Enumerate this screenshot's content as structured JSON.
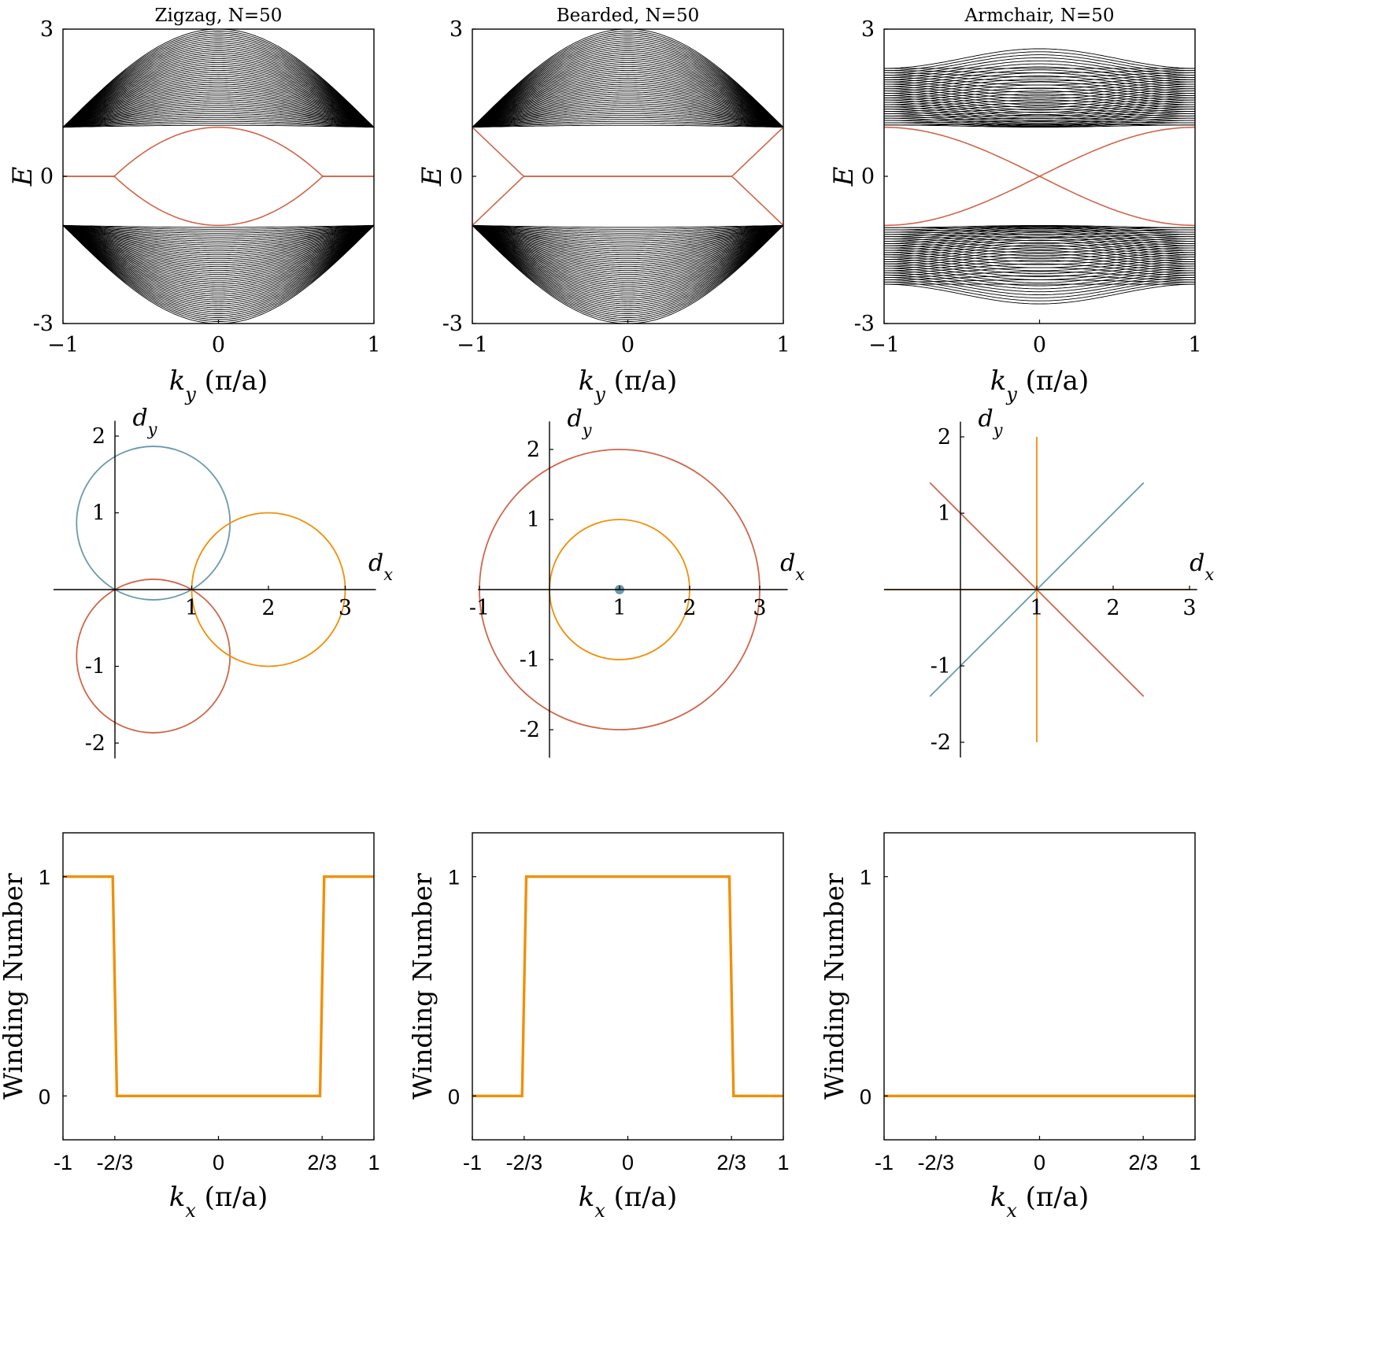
{
  "colors": {
    "black": "#000000",
    "edge_state": "#d0654a",
    "orange": "#f0900a",
    "blue": "#6a9aab"
  },
  "band_panels": [
    {
      "title": "Zigzag, N=50",
      "type": "zigzag",
      "ylabel": "E",
      "xlabel": "k_y (π/a)",
      "xlim": [
        -1,
        1
      ],
      "ylim": [
        -3,
        3
      ],
      "xticks": [
        "−1",
        "0",
        "1"
      ],
      "yticks": [
        "3",
        "0",
        "-3"
      ]
    },
    {
      "title": "Bearded, N=50",
      "type": "bearded",
      "ylabel": "E",
      "xlabel": "k_y (π/a)",
      "xlim": [
        -1,
        1
      ],
      "ylim": [
        -3,
        3
      ],
      "xticks": [
        "−1",
        "0",
        "1"
      ],
      "yticks": [
        "3",
        "0",
        "-3"
      ]
    },
    {
      "title": "Armchair, N=50",
      "type": "armchair",
      "ylabel": "E",
      "xlabel": "k_y (π/a)",
      "xlim": [
        -1,
        1
      ],
      "ylim": [
        -3,
        3
      ],
      "xticks": [
        "−1",
        "0",
        "1"
      ],
      "yticks": [
        "3",
        "0",
        "-3"
      ]
    }
  ],
  "d_panels": [
    {
      "xaxis_label": "d_x",
      "yaxis_label": "d_y",
      "xticks": [
        "1",
        "2",
        "3"
      ],
      "yticks": [
        "2",
        "1",
        "-1",
        "-2"
      ]
    },
    {
      "xaxis_label": "d_x",
      "yaxis_label": "d_y",
      "xticks": [
        "-1",
        "1",
        "2",
        "3"
      ],
      "yticks": [
        "2",
        "1",
        "-1",
        "-2"
      ]
    },
    {
      "xaxis_label": "d_x",
      "yaxis_label": "d_y",
      "xticks": [
        "1",
        "2",
        "3"
      ],
      "yticks": [
        "2",
        "1",
        "-1",
        "-2"
      ]
    }
  ],
  "winding_panels": [
    {
      "ylabel": "Winding Number",
      "xlabel": "k_x (π/a)",
      "xticks": [
        "-1",
        "-2/3",
        "0",
        "2/3",
        "1"
      ],
      "yticks": [
        "1",
        "0"
      ]
    },
    {
      "ylabel": "Winding Number",
      "xlabel": "k_x (π/a)",
      "xticks": [
        "-1",
        "-2/3",
        "0",
        "2/3",
        "1"
      ],
      "yticks": [
        "1",
        "0"
      ]
    },
    {
      "ylabel": "Winding Number",
      "xlabel": "k_x (π/a)",
      "xticks": [
        "-1",
        "-2/3",
        "0",
        "2/3",
        "1"
      ],
      "yticks": [
        "1",
        "0"
      ]
    }
  ],
  "chart_data": [
    {
      "type": "line",
      "title": "Zigzag, N=50",
      "xlabel": "k_y (π/a)",
      "ylabel": "E",
      "xlim": [
        -1,
        1
      ],
      "ylim": [
        -3,
        3
      ],
      "series": [
        {
          "values": "50 bulk bands with E(0) from ±1 to ±3, converging to ±1 at k_y = ±1"
        },
        {
          "values": "flat edge state E = 0 for |k_y| > 2/3; edge bands touching E = 0 at k_y = ±2/3"
        }
      ]
    },
    {
      "type": "line",
      "title": "Bearded, N=50",
      "xlabel": "k_y (π/a)",
      "ylabel": "E",
      "xlim": [
        -1,
        1
      ],
      "ylim": [
        -3,
        3
      ],
      "series": [
        {
          "values": "50 bulk bands with E(0) from ±1 to ±3"
        },
        {
          "values": "flat edge state E = 0 for |k_y| < 2/3; edge bands reaching ±1 at k_y = ±1"
        }
      ]
    },
    {
      "type": "line",
      "title": "Armchair, N=50",
      "xlabel": "k_y (π/a)",
      "ylabel": "E",
      "xlim": [
        -1,
        1
      ],
      "ylim": [
        -3,
        3
      ],
      "series": [
        {
          "values": "bands with E(0) from ±1 to ±2.6 and E(±1) from ±1 to ±2.2; gapless crossing at k_y = 0"
        }
      ]
    },
    {
      "type": "scatter",
      "xlabel": "d_x",
      "ylabel": "d_y",
      "xlim": [
        -0.8,
        3.3
      ],
      "ylim": [
        -2.2,
        2.2
      ],
      "series": [
        {
          "shape": "circle",
          "center": [
            0.5,
            0.866
          ],
          "radius": 1,
          "color": "blue"
        },
        {
          "shape": "circle",
          "center": [
            0.5,
            -0.866
          ],
          "radius": 1,
          "color": "red"
        },
        {
          "shape": "circle",
          "center": [
            2,
            0
          ],
          "radius": 1,
          "color": "orange"
        }
      ]
    },
    {
      "type": "scatter",
      "xlabel": "d_x",
      "ylabel": "d_y",
      "xlim": [
        -1,
        3.3
      ],
      "ylim": [
        -2.4,
        2.4
      ],
      "series": [
        {
          "shape": "point",
          "center": [
            1,
            0
          ],
          "color": "blue"
        },
        {
          "shape": "circle",
          "center": [
            1,
            0
          ],
          "radius": 2,
          "color": "red"
        },
        {
          "shape": "circle",
          "center": [
            1,
            0
          ],
          "radius": 1,
          "color": "orange"
        }
      ]
    },
    {
      "type": "scatter",
      "xlabel": "d_x",
      "ylabel": "d_y",
      "xlim": [
        -1,
        3.1
      ],
      "ylim": [
        -2.2,
        2.2
      ],
      "series": [
        {
          "shape": "segment",
          "from": [
            -0.4,
            -1.4
          ],
          "to": [
            2.4,
            1.4
          ],
          "color": "blue"
        },
        {
          "shape": "segment",
          "from": [
            -0.4,
            1.4
          ],
          "to": [
            2.4,
            -1.4
          ],
          "color": "red"
        },
        {
          "shape": "segment",
          "from": [
            1,
            -2
          ],
          "to": [
            1,
            2
          ],
          "color": "orange"
        },
        {
          "shape": "segment",
          "from": [
            -1,
            0
          ],
          "to": [
            3,
            0
          ],
          "color": "orange"
        }
      ]
    },
    {
      "type": "line",
      "xlabel": "k_x (π/a)",
      "ylabel": "Winding Number",
      "xlim": [
        -1,
        1
      ],
      "ylim": [
        -0.2,
        1.2
      ],
      "x": [
        -1,
        -0.68,
        -0.653,
        0.653,
        0.68,
        1
      ],
      "y": [
        1,
        1,
        0,
        0,
        1,
        1
      ]
    },
    {
      "type": "line",
      "xlabel": "k_x (π/a)",
      "ylabel": "Winding Number",
      "xlim": [
        -1,
        1
      ],
      "ylim": [
        -0.2,
        1.2
      ],
      "x": [
        -1,
        -0.68,
        -0.653,
        0.653,
        0.68,
        1
      ],
      "y": [
        0,
        0,
        1,
        1,
        0,
        0
      ]
    },
    {
      "type": "line",
      "xlabel": "k_x (π/a)",
      "ylabel": "Winding Number",
      "xlim": [
        -1,
        1
      ],
      "ylim": [
        -0.2,
        1.2
      ],
      "x": [
        -1,
        1
      ],
      "y": [
        0,
        0
      ]
    }
  ]
}
